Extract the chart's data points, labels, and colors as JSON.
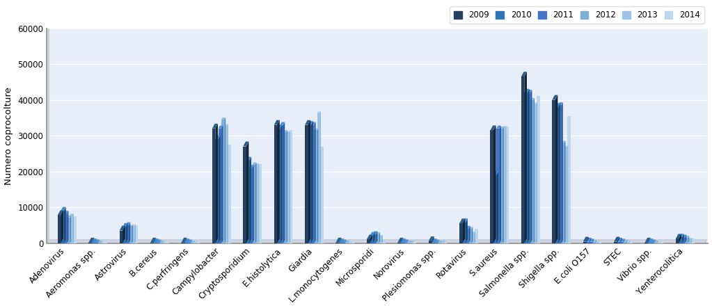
{
  "categories": [
    "Adenovirus",
    "Aeromonas spp.",
    "Astrovirus",
    "B.cereus",
    "C.perfringens",
    "Campylobacter",
    "Cryptosporidium",
    "E.histolytica",
    "Giardia",
    "L.monocytogenes",
    "Microsporidi",
    "Norovirus",
    "Plesiomonas spp.",
    "Rotavirus",
    "S.aureus",
    "Salmonella spp.",
    "Shigella spp.",
    "E.coli O157",
    "STEC",
    "Vibrio spp.",
    "Y.enterocolitica"
  ],
  "years": [
    "2009",
    "2010",
    "2011",
    "2012",
    "2013",
    "2014"
  ],
  "colors": [
    "#243F60",
    "#2E74B5",
    "#4472C4",
    "#7BAFD4",
    "#9DC3E6",
    "#BDD7EE"
  ],
  "colors_dark": [
    "#162438",
    "#1C4B77",
    "#2A56A0",
    "#4A7FB5",
    "#6BA3CC",
    "#9DC3E6"
  ],
  "colors_top": [
    "#2E5F8A",
    "#3A8FD9",
    "#5490D4",
    "#8FC0E0",
    "#B0D4ED",
    "#D0E8F6"
  ],
  "data": {
    "Adenovirus": [
      7800,
      9000,
      8200,
      7200,
      8000,
      7500
    ],
    "Aeromonas spp.": [
      150,
      150,
      150,
      150,
      150,
      150
    ],
    "Astrovirus": [
      3500,
      4500,
      5000,
      4500,
      5000,
      5000
    ],
    "B.cereus": [
      150,
      150,
      150,
      150,
      150,
      150
    ],
    "C.perfringens": [
      150,
      150,
      150,
      150,
      150,
      150
    ],
    "Campylobacter": [
      32000,
      29000,
      32000,
      34500,
      33000,
      27500
    ],
    "Cryptosporidium": [
      27000,
      23000,
      21000,
      22000,
      22000,
      22000
    ],
    "E.histolytica": [
      33000,
      32000,
      33000,
      31000,
      31000,
      31500
    ],
    "Giardia": [
      33000,
      33000,
      33000,
      31500,
      36500,
      27000
    ],
    "L.monocytogenes": [
      150,
      150,
      150,
      150,
      150,
      150
    ],
    "Microsporidi": [
      1000,
      2000,
      2500,
      2500,
      2000,
      500
    ],
    "Norovirus": [
      150,
      150,
      150,
      150,
      600,
      500
    ],
    "Plesiomonas spp.": [
      500,
      150,
      150,
      150,
      700,
      700
    ],
    "Rotavirus": [
      5500,
      5800,
      4000,
      4000,
      3000,
      4000
    ],
    "S.aureus": [
      31500,
      19000,
      32000,
      32000,
      32500,
      32500
    ],
    "Salmonella spp.": [
      46500,
      42000,
      42000,
      40000,
      39000,
      41000
    ],
    "Shigella spp.": [
      40000,
      38000,
      38500,
      28000,
      27000,
      35500
    ],
    "E.coli O157": [
      400,
      400,
      400,
      400,
      400,
      400
    ],
    "STEC": [
      400,
      400,
      400,
      400,
      400,
      400
    ],
    "Vibrio spp.": [
      150,
      150,
      150,
      150,
      150,
      150
    ],
    "Y.enterocolitica": [
      1200,
      1500,
      1500,
      1500,
      1200,
      1300
    ]
  },
  "ylabel": "Numero coprocolture",
  "ylim": [
    0,
    60000
  ],
  "yticks": [
    0,
    10000,
    20000,
    30000,
    40000,
    50000,
    60000
  ],
  "fig_bg_color": "#FFFFFF",
  "wall_color": "#BFBFBF",
  "plot_bg_color": "#E8EEF7",
  "floor_color": "#D0D8E8"
}
